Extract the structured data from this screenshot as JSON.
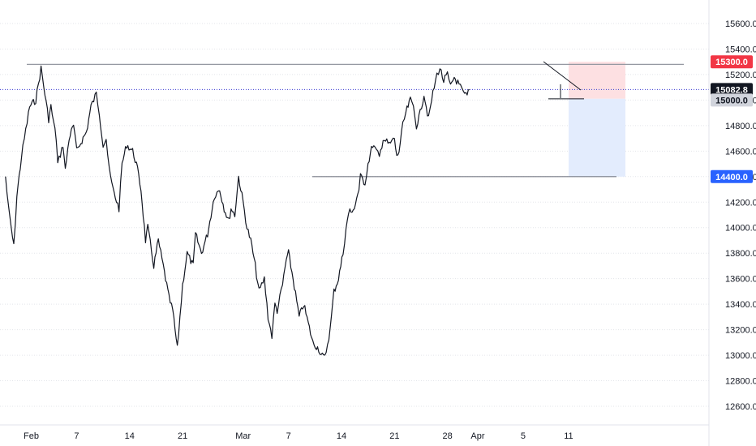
{
  "chart_data": {
    "type": "line",
    "title": "",
    "xlabel": "",
    "ylabel": "",
    "ylim": [
      12450,
      15750
    ],
    "x_tick_labels": [
      "Feb",
      "7",
      "14",
      "21",
      "Mar",
      "7",
      "14",
      "21",
      "28",
      "Apr",
      "5",
      "11"
    ],
    "x_tick_days": [
      1,
      7,
      14,
      21,
      29,
      35,
      42,
      49,
      56,
      60,
      66,
      72
    ],
    "y_ticks": [
      12600,
      12800,
      13000,
      13200,
      13400,
      13600,
      13800,
      14000,
      14200,
      14400,
      14600,
      14800,
      15000,
      15200,
      15400,
      15600
    ],
    "y_tick_labels": [
      "12600.0",
      "12800.0",
      "13000.0",
      "13200.0",
      "13400.0",
      "13600.0",
      "13800.0",
      "14000.0",
      "14200.0",
      "14400.0",
      "14600.0",
      "14800.0",
      "15000.0",
      "15200.0",
      "15400.0",
      "15600.0"
    ],
    "grid": true,
    "series": [
      {
        "values_x_day": [
          -2.4,
          -2.0,
          -1.3,
          -0.9,
          -0.3,
          0.1,
          0.8,
          1.6,
          2.3,
          3.3,
          3.6,
          4.3,
          4.5,
          5.2,
          5.5,
          6.0,
          6.6,
          7.0,
          7.4,
          8.3,
          8.9,
          9.6,
          10.0,
          10.5,
          10.9,
          11.3,
          11.8,
          12.6,
          13.0,
          13.6,
          14.4,
          14.9,
          15.5,
          16.1,
          16.4,
          17.2,
          17.8,
          18.6,
          19.2,
          19.7,
          20.3,
          21.0,
          21.6,
          22.4,
          22.7,
          23.5,
          24.3,
          24.9,
          25.2,
          25.9,
          26.5,
          27.1,
          27.4,
          27.9,
          28.4,
          29.0,
          29.5,
          30.0,
          30.6,
          31.1,
          31.8,
          32.3,
          32.8,
          33.2,
          33.5,
          34.2,
          34.7,
          35.0,
          35.6,
          36.4,
          37.0,
          37.6,
          38.2,
          39.0,
          39.3,
          39.8,
          40.5,
          41.0,
          41.6,
          42.2,
          42.6,
          43.1,
          43.4,
          44.3,
          44.5,
          45.1,
          45.5,
          46.1,
          46.6,
          47.0,
          47.5,
          48.3,
          49.0,
          49.3,
          49.6,
          50.1,
          50.5,
          51.1,
          51.5,
          51.9,
          52.4,
          52.9,
          53.5,
          53.9,
          54.6,
          55.0,
          55.5,
          56.0,
          56.4,
          56.9,
          57.2,
          57.7,
          58.1,
          58.6,
          58.9
        ],
        "values": [
          14400,
          14150,
          13850,
          14250,
          14550,
          14700,
          14950,
          15000,
          15250,
          14850,
          14950,
          14700,
          14500,
          14650,
          14450,
          14700,
          14800,
          14600,
          14650,
          14750,
          14950,
          15050,
          14900,
          14650,
          14700,
          14450,
          14300,
          14150,
          14500,
          14650,
          14600,
          14500,
          14300,
          13900,
          14000,
          13700,
          13900,
          13650,
          13450,
          13350,
          13050,
          13550,
          13800,
          13700,
          13950,
          13800,
          13950,
          14150,
          14250,
          14300,
          14150,
          14050,
          14150,
          14100,
          14400,
          14200,
          14000,
          13900,
          13700,
          13500,
          13600,
          13300,
          13150,
          13400,
          13350,
          13550,
          13750,
          13800,
          13600,
          13300,
          13400,
          13250,
          13100,
          13050,
          13000,
          12980,
          13200,
          13500,
          13600,
          13800,
          14000,
          14150,
          14100,
          14300,
          14400,
          14350,
          14500,
          14650,
          14600,
          14550,
          14700,
          14650,
          14700,
          14550,
          14600,
          14800,
          14900,
          15000,
          14950,
          14800,
          14900,
          15050,
          14850,
          15000,
          15200,
          15250,
          15150,
          15200,
          15100,
          15180,
          15150,
          15100,
          15050,
          15030,
          15082.8
        ]
      }
    ],
    "horizontal_levels": [
      15280,
      14400,
      15010
    ],
    "price_labels": {
      "last_price": "15082.8",
      "target": "15300.0",
      "stop": "14400.0",
      "level": "15000.0"
    },
    "colors": {
      "red_badge": "#f23645",
      "blue_badge": "#2962ff",
      "last_badge": "#131722",
      "gray_badge": "#d1d4dc",
      "risk_zone": "#fde0e2",
      "reward_zone": "#e3ecfd",
      "dotted_last": "#3c3cd2"
    }
  }
}
